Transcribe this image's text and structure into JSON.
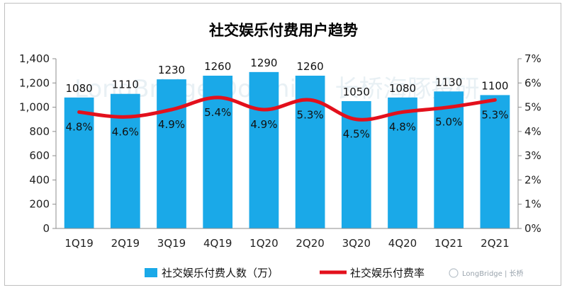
{
  "chart_data": {
    "type": "bar",
    "title": "社交娱乐付费用户趋势",
    "categories": [
      "1Q19",
      "2Q19",
      "3Q19",
      "4Q19",
      "1Q20",
      "2Q20",
      "3Q20",
      "4Q20",
      "1Q21",
      "2Q21"
    ],
    "series": [
      {
        "name": "社交娱乐付费人数（万）",
        "type": "bar",
        "axis": "left",
        "values": [
          1080,
          1110,
          1230,
          1260,
          1290,
          1260,
          1050,
          1080,
          1130,
          1100
        ],
        "color": "#1aa9e8"
      },
      {
        "name": "社交娱乐付费率",
        "type": "line",
        "axis": "right",
        "values": [
          4.8,
          4.6,
          4.9,
          5.4,
          4.9,
          5.3,
          4.5,
          4.8,
          5.0,
          5.3
        ],
        "color": "#e3101c"
      }
    ],
    "bar_labels": [
      "1080",
      "1110",
      "1230",
      "1260",
      "1290",
      "1260",
      "1050",
      "1080",
      "1130",
      "1100"
    ],
    "line_labels": [
      "4.8%",
      "4.6%",
      "4.9%",
      "5.4%",
      "4.9%",
      "5.3%",
      "4.5%",
      "4.8%",
      "5.0%",
      "5.3%"
    ],
    "ylim_left": [
      0,
      1400
    ],
    "ylim_right": [
      0,
      7
    ],
    "left_ticks": [
      "0",
      "200",
      "400",
      "600",
      "800",
      "1,000",
      "1,200",
      "1,400"
    ],
    "right_ticks": [
      "0%",
      "1%",
      "2%",
      "3%",
      "4%",
      "5%",
      "6%",
      "7%"
    ],
    "grid": false,
    "legend_position": "bottom"
  },
  "watermark": {
    "text": "LongBridge Dolphin | 长桥海豚投研"
  },
  "branding": {
    "logo_text": "LongBridge | 长桥"
  }
}
